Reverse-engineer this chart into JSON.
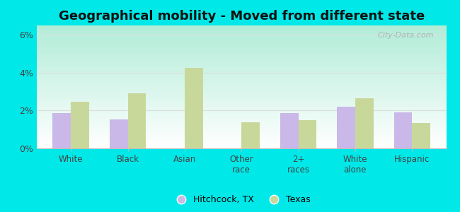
{
  "title": "Geographical mobility - Moved from different state",
  "categories": [
    "White",
    "Black",
    "Asian",
    "Other\nrace",
    "2+\nraces",
    "White\nalone",
    "Hispanic"
  ],
  "hitchcock": [
    1.85,
    1.55,
    0.0,
    0.0,
    1.85,
    2.2,
    1.9
  ],
  "texas": [
    2.45,
    2.9,
    4.25,
    1.4,
    1.5,
    2.65,
    1.35
  ],
  "hitchcock_color": "#c9b8e8",
  "texas_color": "#c8d89a",
  "bg_top_color": "#b2edd8",
  "bg_bottom_color": "#ffffff",
  "outer_bg": "#00e8e8",
  "ylim": [
    0,
    6.5
  ],
  "yticks": [
    0,
    2,
    4,
    6
  ],
  "ytick_labels": [
    "0%",
    "2%",
    "4%",
    "6%"
  ],
  "legend_hitchcock": "Hitchcock, TX",
  "legend_texas": "Texas",
  "bar_width": 0.32,
  "title_fontsize": 13,
  "watermark": "City-Data.com"
}
